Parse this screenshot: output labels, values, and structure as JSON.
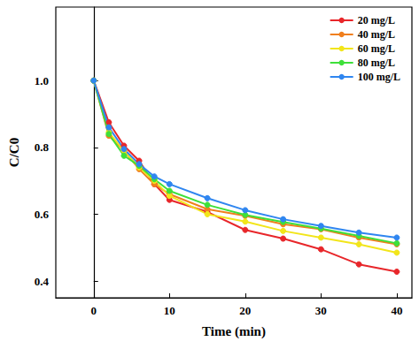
{
  "chart_data": {
    "type": "line",
    "x_label": "Time (min)",
    "y_label": "C/C0",
    "x": [
      0,
      2,
      4,
      6,
      8,
      10,
      15,
      20,
      25,
      30,
      35,
      40
    ],
    "series": [
      {
        "name": "20 mg/L",
        "color": "#e8262a",
        "values": [
          1.0,
          0.875,
          0.805,
          0.76,
          0.69,
          0.643,
          0.607,
          0.553,
          0.527,
          0.495,
          0.45,
          0.428
        ]
      },
      {
        "name": "40 mg/L",
        "color": "#f07f1d",
        "values": [
          1.0,
          0.835,
          0.79,
          0.735,
          0.69,
          0.66,
          0.615,
          0.595,
          0.57,
          0.555,
          0.53,
          0.51
        ]
      },
      {
        "name": "60 mg/L",
        "color": "#f2e51a",
        "values": [
          1.0,
          0.845,
          0.79,
          0.74,
          0.7,
          0.655,
          0.6,
          0.578,
          0.55,
          0.53,
          0.51,
          0.485
        ]
      },
      {
        "name": "80 mg/L",
        "color": "#3ee03a",
        "values": [
          1.0,
          0.84,
          0.775,
          0.745,
          0.705,
          0.67,
          0.628,
          0.598,
          0.577,
          0.557,
          0.535,
          0.513
        ]
      },
      {
        "name": "100 mg/L",
        "color": "#2f86f0",
        "values": [
          1.0,
          0.86,
          0.795,
          0.75,
          0.713,
          0.69,
          0.648,
          0.612,
          0.585,
          0.565,
          0.545,
          0.53
        ]
      }
    ],
    "xlim": [
      -5,
      42
    ],
    "xticks": [
      0,
      10,
      20,
      30,
      40
    ],
    "ylim": [
      0.35,
      1.22
    ],
    "yticks": [
      0.4,
      0.6,
      0.8,
      {
        "value": 1.0,
        "label": "1.0"
      }
    ],
    "marker": "circle",
    "legend": "upper right",
    "grid": false
  }
}
